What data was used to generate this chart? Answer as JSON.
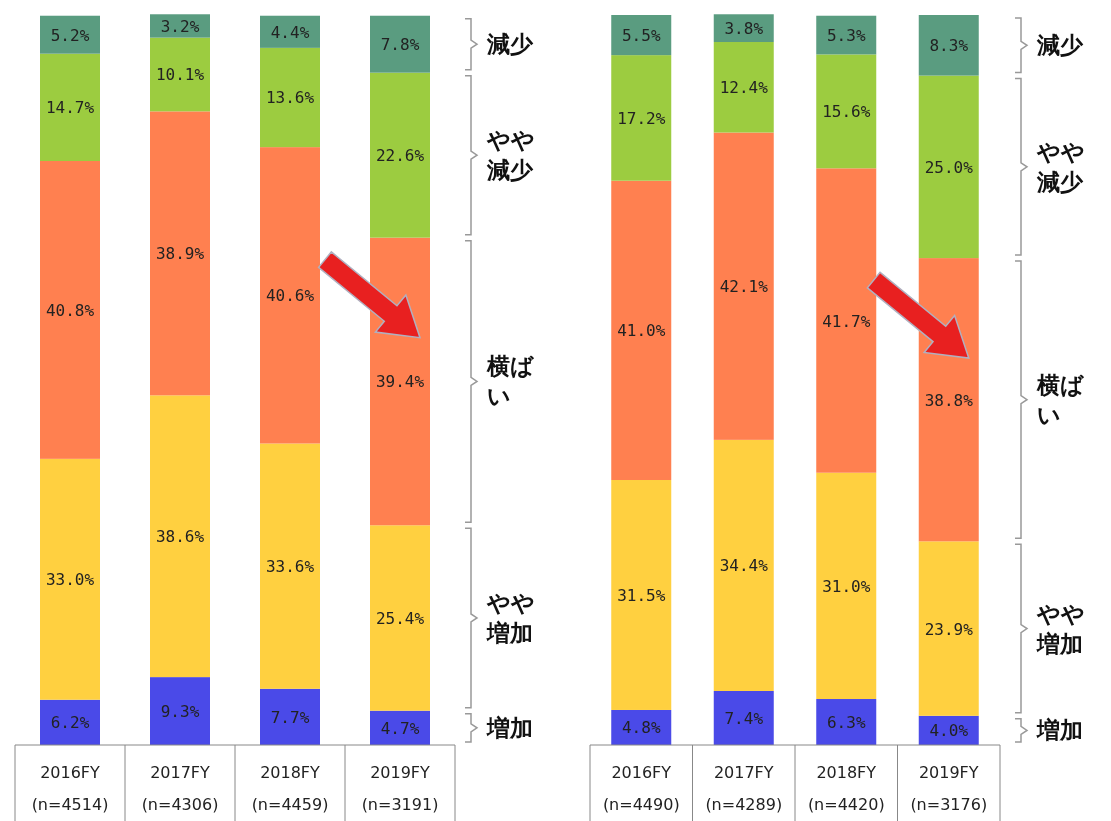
{
  "chart_data": [
    {
      "type": "bar",
      "stacked": true,
      "ylim": [
        0,
        100
      ],
      "tick_labels": "x",
      "legend": "right",
      "categories": [
        "2016FY (n=4514)",
        "2017FY (n=4306)",
        "2018FY (n=4459)",
        "2019FY (n=3191)"
      ],
      "series": [
        {
          "name": "増加",
          "color": "#4a4ae8",
          "values": [
            6.2,
            9.3,
            7.7,
            4.7
          ],
          "value_labels": [
            "6.2%",
            "9.3%",
            "7.7%",
            "4.7%"
          ]
        },
        {
          "name": "やや増加",
          "color": "#ffd040",
          "values": [
            33.0,
            38.6,
            33.6,
            25.4
          ],
          "value_labels": [
            "33.0%",
            "38.6%",
            "33.6%",
            "25.4%"
          ]
        },
        {
          "name": "横ばい",
          "color": "#ff8050",
          "values": [
            40.8,
            38.9,
            40.6,
            39.4
          ],
          "value_labels": [
            "40.8%",
            "38.9%",
            "40.6%",
            "39.4%"
          ]
        },
        {
          "name": "やや減少",
          "color": "#9ccc40",
          "values": [
            14.7,
            10.1,
            13.6,
            22.6
          ],
          "value_labels": [
            "14.7%",
            "10.1%",
            "13.6%",
            "22.6%"
          ]
        },
        {
          "name": "減少",
          "color": "#5a9c80",
          "values": [
            5.2,
            3.2,
            4.4,
            7.8
          ],
          "value_labels": [
            "5.2%",
            "3.2%",
            "4.4%",
            "7.8%"
          ]
        }
      ]
    },
    {
      "type": "bar",
      "stacked": true,
      "ylim": [
        0,
        100
      ],
      "tick_labels": "x",
      "legend": "right",
      "categories": [
        "2016FY (n=4490)",
        "2017FY (n=4289)",
        "2018FY (n=4420)",
        "2019FY (n=3176)"
      ],
      "series": [
        {
          "name": "増加",
          "color": "#4a4ae8",
          "values": [
            4.8,
            7.4,
            6.3,
            4.0
          ],
          "value_labels": [
            "4.8%",
            "7.4%",
            "6.3%",
            "4.0%"
          ]
        },
        {
          "name": "やや増加",
          "color": "#ffd040",
          "values": [
            31.5,
            34.4,
            31.0,
            23.9
          ],
          "value_labels": [
            "31.5%",
            "34.4%",
            "31.0%",
            "23.9%"
          ]
        },
        {
          "name": "横ばい",
          "color": "#ff8050",
          "values": [
            41.0,
            42.1,
            41.7,
            38.8
          ],
          "value_labels": [
            "41.0%",
            "42.1%",
            "41.7%",
            "38.8%"
          ]
        },
        {
          "name": "やや減少",
          "color": "#9ccc40",
          "values": [
            17.2,
            12.4,
            15.6,
            25.0
          ],
          "value_labels": [
            "17.2%",
            "12.4%",
            "15.6%",
            "25.0%"
          ]
        },
        {
          "name": "減少",
          "color": "#5a9c80",
          "values": [
            5.5,
            3.8,
            5.3,
            8.3
          ],
          "value_labels": [
            "5.5%",
            "3.8%",
            "5.3%",
            "8.3%"
          ]
        }
      ]
    }
  ]
}
